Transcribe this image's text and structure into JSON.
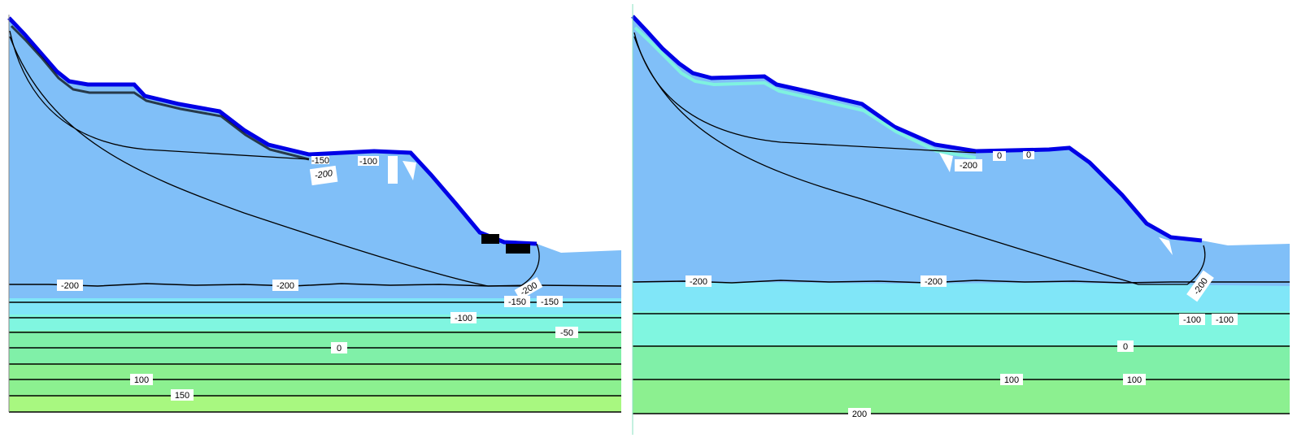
{
  "colors": {
    "blue_region": "#80bff8",
    "cyan_1": "#80e6f8",
    "cyan_2": "#80f6e0",
    "green_1": "#80f0a8",
    "green_2": "#8cf090",
    "green_3": "#a8f880",
    "surface_blue": "#0000e6",
    "contour_line": "#000000",
    "label_bg": "#ffffff"
  },
  "panels": [
    {
      "id": "left",
      "contour_labels": [
        "-200",
        "-200",
        "-200",
        "-150",
        "-150",
        "-100",
        "-50",
        "0",
        "100",
        "150",
        "-200",
        "-150",
        "-100"
      ]
    },
    {
      "id": "right",
      "contour_labels": [
        "-200",
        "-200",
        "-200",
        "-200",
        "-100",
        "-100",
        "0",
        "100",
        "100",
        "200",
        "0",
        "0"
      ]
    }
  ]
}
